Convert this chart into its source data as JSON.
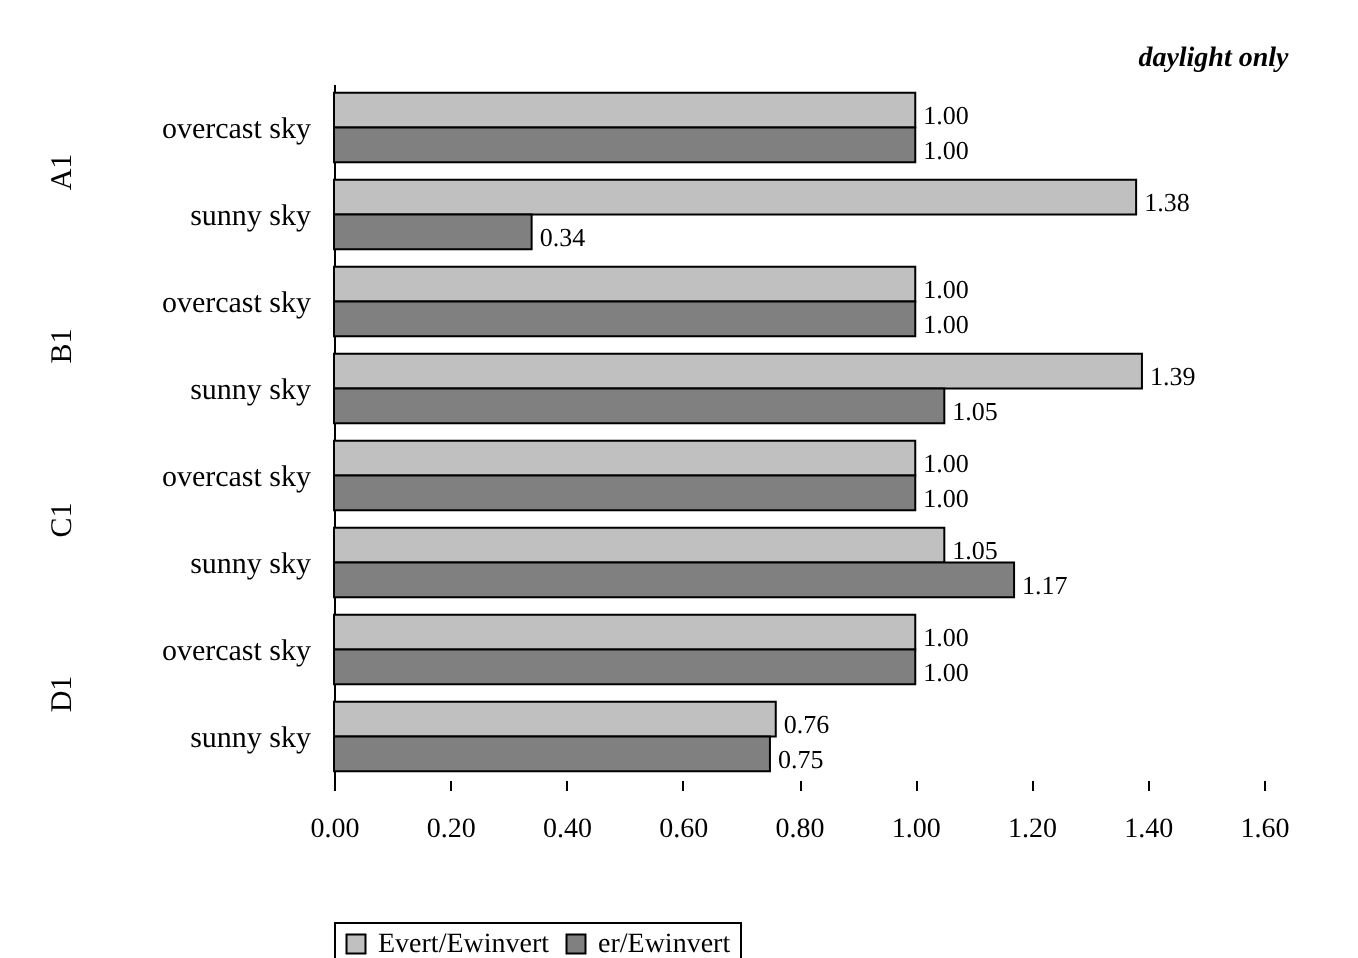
{
  "chart_data": {
    "type": "bar",
    "orientation": "horizontal",
    "subtitle": "daylight only",
    "categories": [
      "overcast sky",
      "sunny sky",
      "overcast sky",
      "sunny sky",
      "overcast sky",
      "sunny sky",
      "overcast sky",
      "sunny sky"
    ],
    "annotations": [
      "A1",
      "B1",
      "C1",
      "D1"
    ],
    "series": [
      {
        "name": "Evert/Ewinvert",
        "color": "#c0c0c0",
        "values": [
          1.0,
          1.38,
          1.0,
          1.39,
          1.0,
          1.05,
          1.0,
          0.76
        ],
        "value_labels": [
          "1.00",
          "1.38",
          "1.00",
          "1.39",
          "1.00",
          "1.05",
          "1.00",
          "0.76"
        ]
      },
      {
        "name": "er/Ewinvert",
        "color": "#808080",
        "values": [
          1.0,
          0.34,
          1.0,
          1.05,
          1.0,
          1.17,
          1.0,
          0.75
        ],
        "value_labels": [
          "1.00",
          "0.34",
          "1.00",
          "1.05",
          "1.00",
          "1.17",
          "1.00",
          "0.75"
        ]
      }
    ],
    "xlim": [
      0,
      1.6
    ],
    "xticks": [
      {
        "value": 0,
        "label": "0.00"
      },
      {
        "value": 0.2,
        "label": "0.20"
      },
      {
        "value": 0.4,
        "label": "0.40"
      },
      {
        "value": 0.6,
        "label": "0.60"
      },
      {
        "value": 0.8,
        "label": "0.80"
      },
      {
        "value": 1,
        "label": "1.00"
      },
      {
        "value": 1.2,
        "label": "1.20"
      },
      {
        "value": 1.4,
        "label": "1.40"
      },
      {
        "value": 1.6,
        "label": "1.60"
      }
    ],
    "legend": "bottom",
    "grid": false
  }
}
